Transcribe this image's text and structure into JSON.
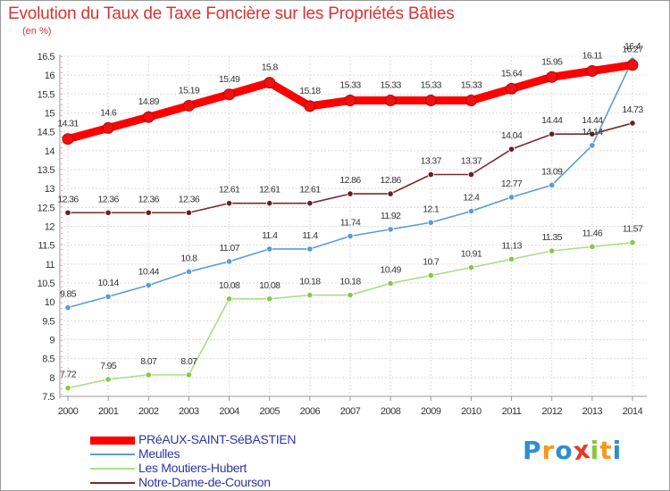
{
  "chart_data": {
    "type": "line",
    "title": "Evolution du Taux de Taxe Foncière sur les Propriétés Bâties",
    "ylabel": "(en %)",
    "xlabel": "",
    "x": [
      "2000",
      "2001",
      "2002",
      "2003",
      "2004",
      "2005",
      "2006",
      "2007",
      "2008",
      "2009",
      "2010",
      "2011",
      "2012",
      "2013",
      "2014"
    ],
    "yticks": [
      "7.5",
      "8",
      "8.5",
      "9",
      "9.5",
      "10",
      "10.5",
      "11",
      "11.5",
      "12",
      "12.5",
      "13",
      "13.5",
      "14",
      "14.5",
      "15",
      "15.5",
      "16",
      "16.5"
    ],
    "ylim": [
      7.5,
      16.5
    ],
    "grid": true,
    "series": [
      {
        "name": "PRéAUX-SAINT-SéBASTIEN",
        "color": "#ff0000",
        "marker": "#ee1111",
        "values": [
          14.31,
          14.6,
          14.89,
          15.19,
          15.49,
          15.8,
          15.18,
          15.33,
          15.33,
          15.33,
          15.33,
          15.64,
          15.95,
          16.11,
          16.27
        ],
        "labels": [
          "14.31",
          "14.6",
          "14.89",
          "15.19",
          "15.49",
          "15.8",
          "15.18",
          "15.33",
          "15.33",
          "15.33",
          "15.33",
          "15.64",
          "15.95",
          "16.11",
          "16.27"
        ]
      },
      {
        "name": "Meulles",
        "color": "#5b9bd5",
        "marker": "#5b9bd5",
        "values": [
          9.85,
          10.14,
          10.44,
          10.8,
          11.07,
          11.4,
          11.4,
          11.74,
          11.92,
          12.1,
          12.4,
          12.77,
          13.09,
          14.14,
          16.4
        ],
        "labels": [
          "9.85",
          "10.14",
          "10.44",
          "10.8",
          "11.07",
          "11.4",
          "11.4",
          "11.74",
          "11.92",
          "12.1",
          "12.4",
          "12.77",
          "13.09",
          "14.14",
          "16.4"
        ]
      },
      {
        "name": "Les Moutiers-Hubert",
        "color": "#a8df88",
        "marker": "#86c94a",
        "values": [
          7.72,
          7.95,
          8.07,
          8.07,
          10.08,
          10.08,
          10.18,
          10.18,
          10.49,
          10.7,
          10.91,
          11.13,
          11.35,
          11.46,
          11.57
        ],
        "labels": [
          "7.72",
          "7.95",
          "8.07",
          "8.07",
          "10.08",
          "10.08",
          "10.18",
          "10.18",
          "10.49",
          "10.7",
          "10.91",
          "11.13",
          "11.35",
          "11.46",
          "11.57"
        ]
      },
      {
        "name": "Notre-Dame-de-Courson",
        "color": "#7a2a2a",
        "marker": "#6b1e1e",
        "values": [
          12.36,
          12.36,
          12.36,
          12.36,
          12.61,
          12.61,
          12.61,
          12.86,
          12.86,
          13.37,
          13.37,
          14.04,
          14.44,
          14.44,
          14.73
        ],
        "labels": [
          "12.36",
          "12.36",
          "12.36",
          "12.36",
          "12.61",
          "12.61",
          "12.61",
          "12.86",
          "12.86",
          "13.37",
          "13.37",
          "14.04",
          "14.44",
          "14.44",
          "14.73"
        ]
      }
    ]
  },
  "brand": {
    "letters": [
      "P",
      "r",
      "o",
      "x",
      "i",
      "t",
      "i"
    ],
    "colors": [
      "#2e8ed0",
      "#f39a1e",
      "#2e8ed0",
      "#e43a2a",
      "#8cc63f",
      "#f39a1e",
      "#2e8ed0"
    ]
  }
}
